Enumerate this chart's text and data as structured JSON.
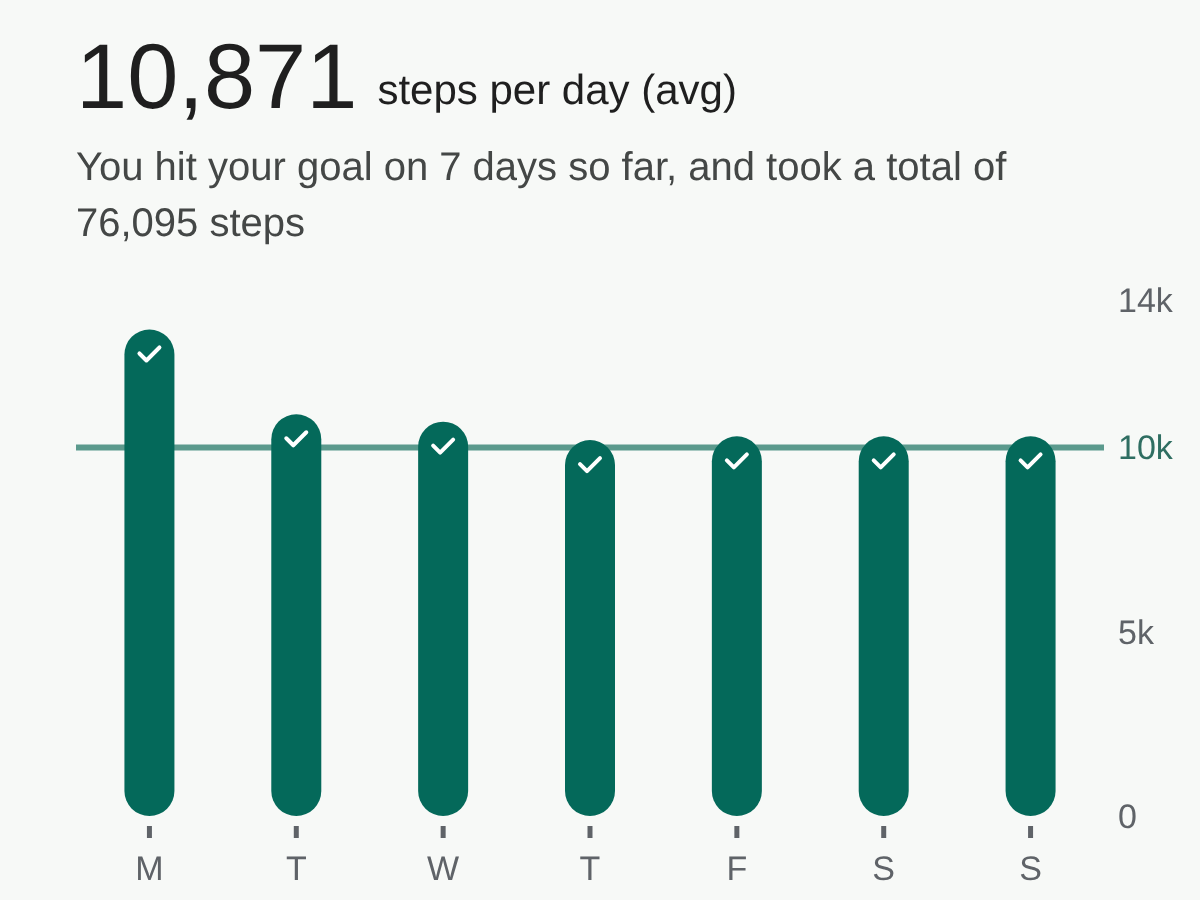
{
  "chart_data": {
    "type": "bar",
    "title": "10,871",
    "subtitle": "steps per day (avg)",
    "annotations": [
      "You hit your goal on 7 days so far, and took a total of 76,095 steps"
    ],
    "categories": [
      "M",
      "T",
      "W",
      "T",
      "F",
      "S",
      "S"
    ],
    "values": [
      13200,
      10900,
      10700,
      10200,
      10300,
      10300,
      10300
    ],
    "color": "#04695a",
    "ylim": [
      0,
      14000
    ],
    "yticks": [
      0,
      {
        "value": 5000,
        "label": "5k"
      },
      {
        "value": 10000,
        "label": "10k"
      },
      {
        "value": 14000,
        "label": "14k"
      }
    ],
    "ref_lines": [
      {
        "axis": "y",
        "value": 10000,
        "color": "#5b9a8d"
      }
    ]
  }
}
